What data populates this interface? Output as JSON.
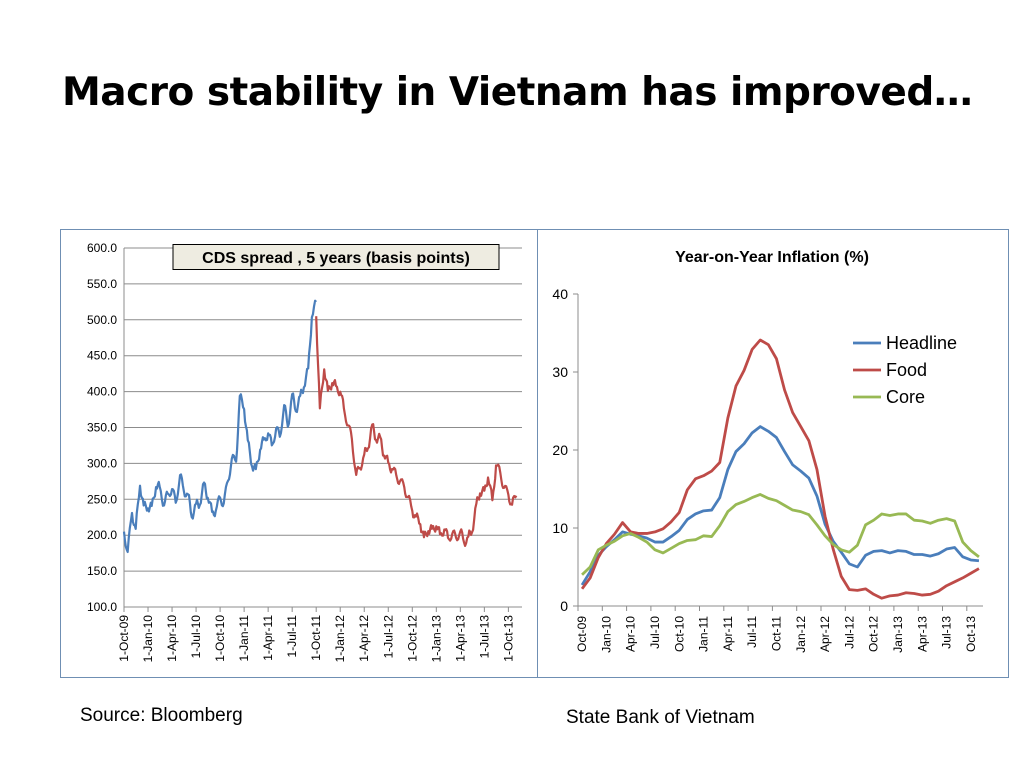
{
  "slide": {
    "title": "Macro stability in Vietnam has improved…",
    "source_left": "Source: Bloomberg",
    "source_right": "State Bank of Vietnam"
  },
  "chart_data": [
    {
      "type": "line",
      "title": "CDS spread , 5 years (basis points)",
      "xlabel": "",
      "ylabel": "",
      "ylim": [
        100,
        600
      ],
      "y_ticks": [
        "100.0",
        "150.0",
        "200.0",
        "250.0",
        "300.0",
        "350.0",
        "400.0",
        "450.0",
        "500.0",
        "550.0",
        "600.0"
      ],
      "x_tick_labels": [
        "1-Oct-09",
        "1-Jan-10",
        "1-Apr-10",
        "1-Jul-10",
        "1-Oct-10",
        "1-Jan-11",
        "1-Apr-11",
        "1-Jul-11",
        "1-Oct-11",
        "1-Jan-12",
        "1-Apr-12",
        "1-Jul-12",
        "1-Oct-12",
        "1-Jan-13",
        "1-Apr-13",
        "1-Jul-13",
        "1-Oct-13"
      ],
      "grid": "horizontal",
      "legend": "none",
      "colors": {
        "blue": "#4a7ebb",
        "red": "#be4b48"
      },
      "series": [
        {
          "color_key": "blue",
          "x": [
            "1-Oct-09",
            "15-Oct-09",
            "1-Nov-09",
            "15-Nov-09",
            "1-Dec-09",
            "15-Dec-09",
            "1-Jan-10",
            "15-Jan-10",
            "1-Feb-10",
            "15-Feb-10",
            "1-Mar-10",
            "15-Mar-10",
            "1-Apr-10",
            "15-Apr-10",
            "1-May-10",
            "15-May-10",
            "1-Jun-10",
            "15-Jun-10",
            "1-Jul-10",
            "15-Jul-10",
            "1-Aug-10",
            "15-Aug-10",
            "1-Sep-10",
            "15-Sep-10",
            "1-Oct-10",
            "15-Oct-10",
            "1-Nov-10",
            "15-Nov-10",
            "1-Dec-10",
            "15-Dec-10",
            "1-Jan-11",
            "15-Jan-11",
            "1-Feb-11",
            "15-Feb-11",
            "1-Mar-11",
            "15-Mar-11",
            "1-Apr-11",
            "15-Apr-11",
            "1-May-11",
            "15-May-11",
            "1-Jun-11",
            "15-Jun-11",
            "1-Jul-11",
            "15-Jul-11",
            "1-Aug-11",
            "15-Aug-11",
            "1-Sep-11",
            "15-Sep-11",
            "1-Oct-11"
          ],
          "values": [
            205,
            175,
            228,
            205,
            265,
            238,
            235,
            240,
            268,
            270,
            245,
            262,
            268,
            248,
            285,
            262,
            255,
            222,
            240,
            238,
            270,
            250,
            232,
            235,
            255,
            248,
            280,
            310,
            305,
            395,
            375,
            330,
            292,
            288,
            315,
            330,
            340,
            325,
            350,
            340,
            385,
            355,
            400,
            375,
            395,
            405,
            430,
            500,
            525
          ]
        },
        {
          "color_key": "red",
          "x": [
            "1-Oct-11",
            "15-Oct-11",
            "1-Nov-11",
            "15-Nov-11",
            "1-Dec-11",
            "15-Dec-11",
            "1-Jan-12",
            "15-Jan-12",
            "1-Feb-12",
            "15-Feb-12",
            "1-Mar-12",
            "15-Mar-12",
            "1-Apr-12",
            "15-Apr-12",
            "1-May-12",
            "15-May-12",
            "1-Jun-12",
            "15-Jun-12",
            "1-Jul-12",
            "15-Jul-12",
            "1-Aug-12",
            "15-Aug-12",
            "1-Sep-12",
            "15-Sep-12",
            "1-Oct-12",
            "15-Oct-12",
            "1-Nov-12",
            "15-Nov-12",
            "1-Dec-12",
            "15-Dec-12",
            "1-Jan-13",
            "15-Jan-13",
            "1-Feb-13",
            "15-Feb-13",
            "1-Mar-13",
            "15-Mar-13",
            "1-Apr-13",
            "15-Apr-13",
            "1-May-13",
            "15-May-13",
            "1-Jun-13",
            "15-Jun-13",
            "1-Jul-13",
            "15-Jul-13",
            "1-Aug-13",
            "15-Aug-13",
            "1-Sep-13",
            "15-Sep-13",
            "1-Oct-13",
            "15-Oct-13",
            "1-Nov-13"
          ],
          "values": [
            505,
            380,
            435,
            405,
            415,
            410,
            400,
            375,
            350,
            330,
            280,
            290,
            310,
            320,
            355,
            335,
            340,
            315,
            305,
            295,
            285,
            275,
            265,
            250,
            230,
            222,
            212,
            195,
            205,
            210,
            215,
            205,
            212,
            200,
            205,
            198,
            205,
            188,
            195,
            200,
            240,
            255,
            260,
            280,
            250,
            300,
            290,
            270,
            260,
            245,
            255
          ]
        }
      ]
    },
    {
      "type": "line",
      "title": "Year-on-Year Inflation (%)",
      "xlabel": "",
      "ylabel": "",
      "ylim": [
        0,
        40
      ],
      "y_ticks": [
        "0",
        "10",
        "20",
        "30",
        "40"
      ],
      "x": [
        "Oct-09",
        "Nov-09",
        "Dec-09",
        "Jan-10",
        "Feb-10",
        "Mar-10",
        "Apr-10",
        "May-10",
        "Jun-10",
        "Jul-10",
        "Aug-10",
        "Sep-10",
        "Oct-10",
        "Nov-10",
        "Dec-10",
        "Jan-11",
        "Feb-11",
        "Mar-11",
        "Apr-11",
        "May-11",
        "Jun-11",
        "Jul-11",
        "Aug-11",
        "Sep-11",
        "Oct-11",
        "Nov-11",
        "Dec-11",
        "Jan-12",
        "Feb-12",
        "Mar-12",
        "Apr-12",
        "May-12",
        "Jun-12",
        "Jul-12",
        "Aug-12",
        "Sep-12",
        "Oct-12",
        "Nov-12",
        "Dec-12",
        "Jan-13",
        "Feb-13",
        "Mar-13",
        "Apr-13",
        "May-13",
        "Jun-13",
        "Jul-13",
        "Aug-13",
        "Sep-13",
        "Oct-13",
        "Nov-13"
      ],
      "x_tick_labels": [
        "Oct-09",
        "Jan-10",
        "Apr-10",
        "Jul-10",
        "Oct-10",
        "Jan-11",
        "Apr-11",
        "Jul-11",
        "Oct-11",
        "Jan-12",
        "Apr-12",
        "Jul-12",
        "Oct-12",
        "Jan-13",
        "Apr-13",
        "Jul-13",
        "Oct-13"
      ],
      "grid": "none",
      "legend": "right",
      "colors": {
        "Headline": "#4a7ebb",
        "Food": "#be4b48",
        "Core": "#98b954"
      },
      "series": [
        {
          "name": "Headline",
          "values": [
            2.7,
            4.4,
            6.5,
            7.6,
            8.5,
            9.5,
            9.2,
            9.0,
            8.7,
            8.2,
            8.2,
            8.9,
            9.7,
            11.1,
            11.8,
            12.2,
            12.3,
            13.9,
            17.5,
            19.8,
            20.8,
            22.2,
            23.0,
            22.4,
            21.6,
            19.8,
            18.1,
            17.3,
            16.4,
            14.1,
            10.5,
            8.3,
            6.9,
            5.4,
            5.0,
            6.5,
            7.0,
            7.1,
            6.8,
            7.1,
            7.0,
            6.6,
            6.6,
            6.4,
            6.7,
            7.3,
            7.5,
            6.3,
            5.9,
            5.8
          ]
        },
        {
          "name": "Food",
          "values": [
            2.2,
            3.6,
            6.2,
            8.0,
            9.2,
            10.7,
            9.5,
            9.3,
            9.3,
            9.5,
            9.9,
            10.8,
            12.0,
            14.9,
            16.3,
            16.7,
            17.3,
            18.4,
            24.1,
            28.2,
            30.2,
            32.9,
            34.1,
            33.5,
            31.7,
            27.7,
            24.8,
            23.0,
            21.2,
            17.5,
            11.5,
            7.3,
            3.8,
            2.1,
            2.0,
            2.2,
            1.5,
            1.0,
            1.3,
            1.4,
            1.7,
            1.6,
            1.4,
            1.5,
            1.9,
            2.6,
            3.1,
            3.6,
            4.2,
            4.8
          ]
        },
        {
          "name": "Core",
          "values": [
            4.0,
            5.0,
            7.2,
            7.8,
            8.3,
            9.0,
            9.3,
            8.8,
            8.2,
            7.2,
            6.8,
            7.4,
            8.0,
            8.4,
            8.5,
            9.0,
            8.9,
            10.3,
            12.1,
            13.0,
            13.4,
            13.9,
            14.3,
            13.8,
            13.5,
            12.9,
            12.3,
            12.1,
            11.7,
            10.4,
            9.0,
            7.9,
            7.2,
            6.9,
            7.8,
            10.4,
            11.0,
            11.8,
            11.6,
            11.8,
            11.8,
            11.0,
            10.9,
            10.6,
            11.0,
            11.2,
            10.9,
            8.2,
            7.1,
            6.3
          ]
        }
      ]
    }
  ]
}
